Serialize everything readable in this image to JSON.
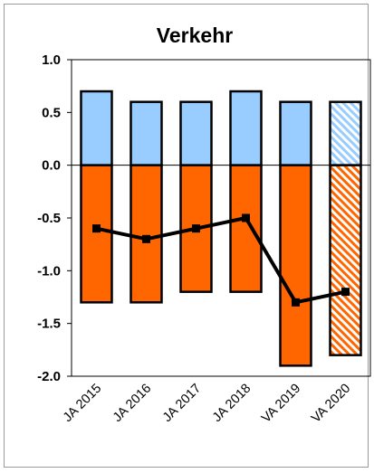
{
  "chart_data": {
    "type": "bar",
    "title": "Verkehr",
    "categories": [
      "JA 2015",
      "JA 2016",
      "JA 2017",
      "JA 2018",
      "VA 2019",
      "VA 2020"
    ],
    "ylim": [
      -2.0,
      1.0
    ],
    "yticks": [
      "1.0",
      "0.5",
      "0.0",
      "-0.5",
      "-1.0",
      "-1.5",
      "-2.0"
    ],
    "grid": false,
    "stacked": true,
    "series": [
      {
        "type": "bar",
        "values": [
          0.7,
          0.6,
          0.6,
          0.7,
          0.6,
          0.6
        ],
        "color": "#99ccff"
      },
      {
        "type": "bar",
        "values": [
          -1.3,
          -1.3,
          -1.2,
          -1.2,
          -1.9,
          -1.8
        ],
        "color": "#ff6600"
      },
      {
        "type": "line",
        "values": [
          -0.6,
          -0.7,
          -0.6,
          -0.5,
          -1.3,
          -1.2
        ],
        "color": "#000000"
      }
    ],
    "hatched_categories": [
      "VA 2020"
    ]
  }
}
